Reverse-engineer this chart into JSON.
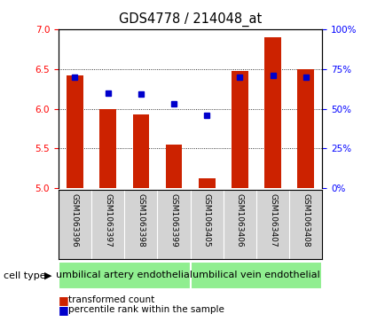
{
  "title": "GDS4778 / 214048_at",
  "samples": [
    "GSM1063396",
    "GSM1063397",
    "GSM1063398",
    "GSM1063399",
    "GSM1063405",
    "GSM1063406",
    "GSM1063407",
    "GSM1063408"
  ],
  "red_values": [
    6.42,
    6.0,
    5.93,
    5.55,
    5.13,
    6.47,
    6.9,
    6.5
  ],
  "blue_percentile": [
    70,
    60,
    59,
    53,
    46,
    70,
    71,
    70
  ],
  "ymin": 5.0,
  "ymax": 7.0,
  "yticks_left": [
    5.0,
    5.5,
    6.0,
    6.5,
    7.0
  ],
  "yticks_right": [
    0,
    25,
    50,
    75,
    100
  ],
  "right_yticklabels": [
    "0%",
    "25%",
    "50%",
    "75%",
    "100%"
  ],
  "cell_type_groups": [
    {
      "label": "umbilical artery endothelial",
      "start": 0,
      "end": 3,
      "color": "#90EE90"
    },
    {
      "label": "umbilical vein endothelial",
      "start": 4,
      "end": 7,
      "color": "#90EE90"
    }
  ],
  "bar_color": "#cc2200",
  "dot_color": "#0000cc",
  "bar_width": 0.5,
  "background_color": "#ffffff",
  "cell_type_label": "cell type",
  "legend_red": "transformed count",
  "legend_blue": "percentile rank within the sample",
  "tick_fontsize": 7.5,
  "title_fontsize": 10.5,
  "sample_fontsize": 6.5,
  "celltype_fontsize": 8,
  "legend_fontsize": 7.5
}
